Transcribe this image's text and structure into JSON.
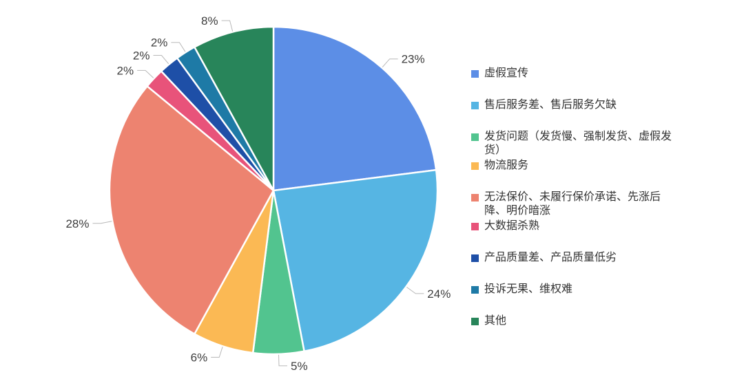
{
  "chart_data": {
    "type": "pie",
    "title": "",
    "legend_position": "right",
    "start_angle_deg": 0,
    "direction": "clockwise",
    "label_format": "percent-outside",
    "slices": [
      {
        "label": "虚假宣传",
        "value_pct": 23,
        "display": "23%",
        "color": "#5C8EE6"
      },
      {
        "label": "售后服务差、售后服务欠缺",
        "value_pct": 24,
        "display": "24%",
        "color": "#56B5E3"
      },
      {
        "label": "发货问题（发货慢、强制发货、虚假发货）",
        "value_pct": 5,
        "display": "5%",
        "color": "#52C48F"
      },
      {
        "label": "物流服务",
        "value_pct": 6,
        "display": "6%",
        "color": "#FBB954"
      },
      {
        "label": "无法保价、未履行保价承诺、先涨后降、明价暗涨",
        "value_pct": 28,
        "display": "28%",
        "color": "#ED8370"
      },
      {
        "label": "大数据杀熟",
        "value_pct": 2,
        "display": "2%",
        "color": "#E8537A"
      },
      {
        "label": "产品质量差、产品质量低劣",
        "value_pct": 2,
        "display": "2%",
        "color": "#1E4FA7"
      },
      {
        "label": "投诉无果、维权难",
        "value_pct": 2,
        "display": "2%",
        "color": "#1E7AA6"
      },
      {
        "label": "其他",
        "value_pct": 8,
        "display": "8%",
        "color": "#28855A"
      }
    ]
  },
  "styles": {
    "background": "#ffffff",
    "slice_border_color": "#ffffff",
    "leader_line_color": "#b8b8b8",
    "percent_label_color": "#3d3d3d",
    "legend_text_color": "#333333"
  }
}
